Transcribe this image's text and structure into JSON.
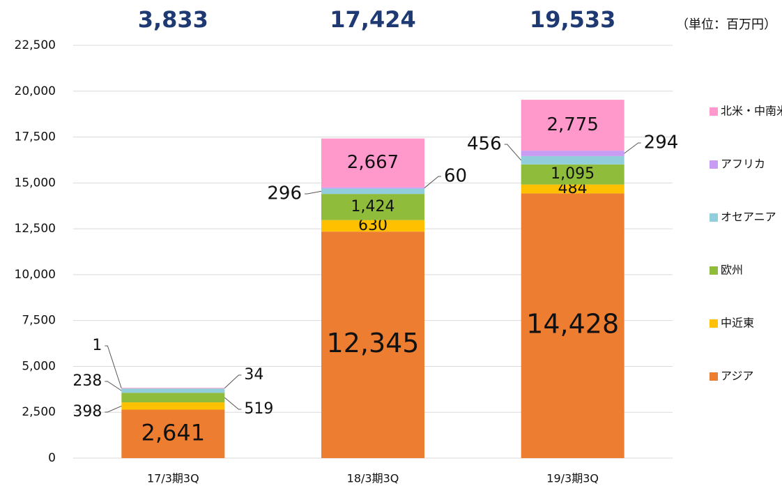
{
  "chart_data": {
    "type": "stacked_bar",
    "unit_label": "（単位：百万円）",
    "categories": [
      "17/3期3Q",
      "18/3期3Q",
      "19/3期3Q"
    ],
    "totals": [
      3833,
      17424,
      19533
    ],
    "total_labels": [
      "3,833",
      "17,424",
      "19,533"
    ],
    "series": [
      {
        "name": "アジア",
        "color": "#ed7d31",
        "values": [
          2641,
          12345,
          14428
        ],
        "value_labels": [
          "2,641",
          "12,345",
          "14,428"
        ]
      },
      {
        "name": "中近東",
        "color": "#ffc000",
        "values": [
          398,
          630,
          484
        ]
      },
      {
        "name": "欧州",
        "color": "#8fbc3b",
        "values": [
          519,
          1424,
          1095
        ],
        "value_labels": [
          "519",
          "1,424",
          "1,095"
        ]
      },
      {
        "name": "オセアニア",
        "color": "#92cddc",
        "values": [
          238,
          296,
          456
        ]
      },
      {
        "name": "アフリカ",
        "color": "#c89cf2",
        "values": [
          1,
          60,
          294
        ]
      },
      {
        "name": "北米・中南米",
        "color": "#ff99cc",
        "values": [
          34,
          2667,
          2775
        ],
        "value_labels": [
          "34",
          "2,667",
          "2,775"
        ]
      }
    ],
    "ylim": [
      0,
      22500
    ],
    "yticks": [
      0,
      {
        "value": 2500,
        "label": "2,500"
      },
      {
        "value": 5000,
        "label": "5,000"
      },
      {
        "value": 7500,
        "label": "7,500"
      },
      {
        "value": 10000,
        "label": "10,000"
      },
      {
        "value": 12500,
        "label": "12,500"
      },
      {
        "value": 15000,
        "label": "15,000"
      },
      {
        "value": 17500,
        "label": "17,500"
      },
      {
        "value": 20000,
        "label": "20,000"
      },
      {
        "value": 22500,
        "label": "22,500"
      }
    ],
    "grid": true,
    "legend": "right"
  }
}
